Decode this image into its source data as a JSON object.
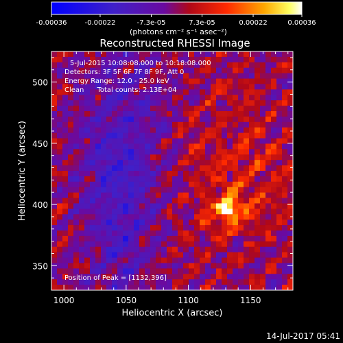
{
  "colorbar": {
    "tick_labels": [
      "-0.00036",
      "-0.00022",
      "-7.3e-05",
      "7.3e-05",
      "0.00022",
      "0.00036"
    ],
    "tick_values": [
      -0.00036,
      -0.00022,
      -7.3e-05,
      7.3e-05,
      0.00022,
      0.00036
    ],
    "range": [
      -0.00036,
      0.00036
    ],
    "units_label": "(photons cm⁻² s⁻¹ asec⁻²)",
    "colormap": "blue-purple-red-yellow-white"
  },
  "chart_data": {
    "type": "heatmap",
    "title": "Reconstructed RHESSI Image",
    "xlabel": "Heliocentric X (arcsec)",
    "ylabel": "Heliocentric Y (arcsec)",
    "xlim": [
      990,
      1184
    ],
    "ylim": [
      330,
      525
    ],
    "x_ticks": [
      1000,
      1050,
      1100,
      1150
    ],
    "y_ticks": [
      350,
      400,
      450,
      500
    ],
    "annotations": [
      "5-Jul-2015 10:08:08.000 to 10:18:08.000",
      "Detectors: 3F 5F 6F 7F 8F 9F, Att 0",
      "Energy Range: 12.0 - 25.0 keV",
      "Clean      Total counts: 2.13E+04"
    ],
    "peak_label": "Position of Peak = [1132,396]",
    "peak": {
      "x": 1132,
      "y": 396
    },
    "grid": false
  },
  "footer": {
    "timestamp": "14-Jul-2017 05:41"
  }
}
